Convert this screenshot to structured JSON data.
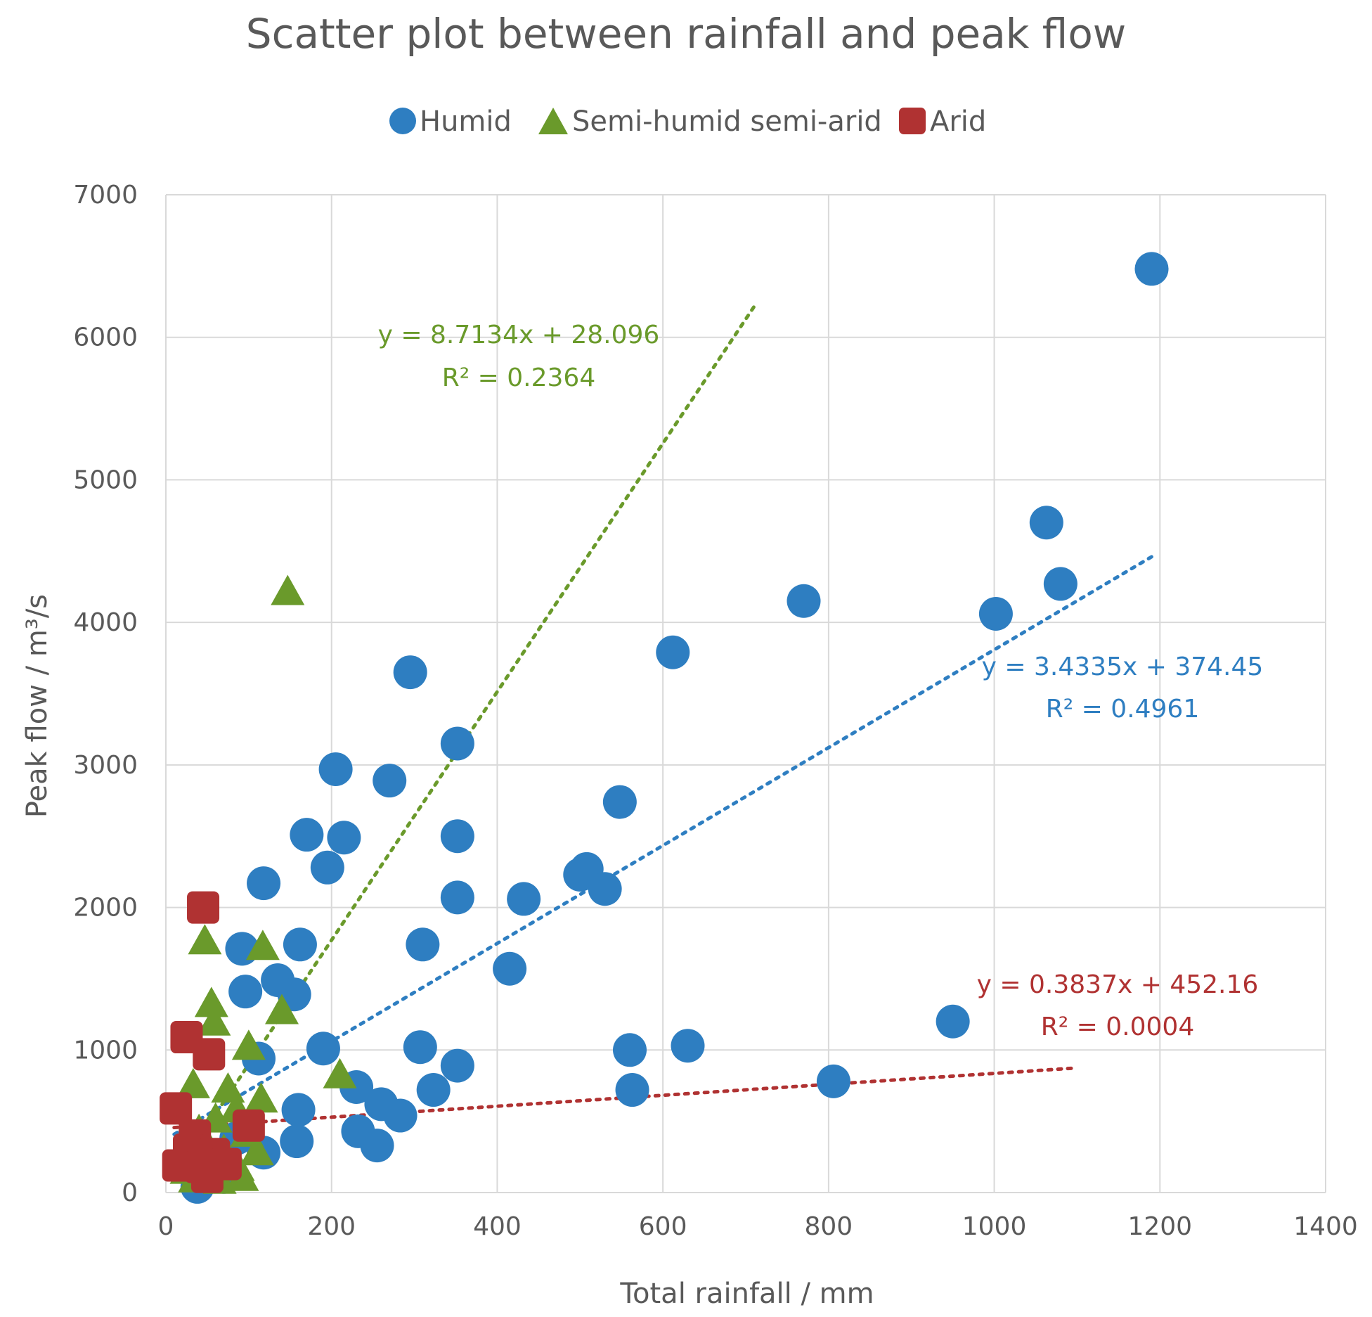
{
  "chart_data": {
    "type": "scatter",
    "title": "Scatter plot between rainfall and peak flow",
    "xlabel": "Total rainfall / mm",
    "ylabel": "Peak flow / m³/s",
    "xlim": [
      0,
      1400
    ],
    "ylim": [
      0,
      7000
    ],
    "xticks": [
      0,
      200,
      400,
      600,
      800,
      1000,
      1200,
      1400
    ],
    "yticks": [
      0,
      1000,
      2000,
      3000,
      4000,
      5000,
      6000,
      7000
    ],
    "grid": true,
    "legend_position": "top-center",
    "series": [
      {
        "name": "Humid",
        "color": "#2E7EC1",
        "marker": "circle",
        "trendline": {
          "slope": 3.4335,
          "intercept": 374.45,
          "x_range": [
            10,
            1190
          ],
          "equation": "y = 3.4335x + 374.45",
          "r2_label": "R² = 0.4961"
        },
        "points": [
          [
            1190,
            6480
          ],
          [
            1063,
            4700
          ],
          [
            1080,
            4270
          ],
          [
            1002,
            4060
          ],
          [
            770,
            4150
          ],
          [
            612,
            3790
          ],
          [
            295,
            3650
          ],
          [
            352,
            3150
          ],
          [
            205,
            2970
          ],
          [
            270,
            2890
          ],
          [
            548,
            2740
          ],
          [
            170,
            2510
          ],
          [
            215,
            2490
          ],
          [
            352,
            2500
          ],
          [
            195,
            2280
          ],
          [
            500,
            2230
          ],
          [
            508,
            2270
          ],
          [
            530,
            2130
          ],
          [
            118,
            2170
          ],
          [
            352,
            2070
          ],
          [
            432,
            2060
          ],
          [
            92,
            1710
          ],
          [
            162,
            1740
          ],
          [
            310,
            1740
          ],
          [
            415,
            1570
          ],
          [
            135,
            1490
          ],
          [
            96,
            1410
          ],
          [
            155,
            1390
          ],
          [
            190,
            1010
          ],
          [
            307,
            1020
          ],
          [
            112,
            940
          ],
          [
            230,
            740
          ],
          [
            352,
            890
          ],
          [
            560,
            1000
          ],
          [
            630,
            1030
          ],
          [
            950,
            1200
          ],
          [
            806,
            780
          ],
          [
            563,
            720
          ],
          [
            323,
            720
          ],
          [
            260,
            620
          ],
          [
            283,
            540
          ],
          [
            160,
            580
          ],
          [
            232,
            430
          ],
          [
            255,
            330
          ],
          [
            158,
            360
          ],
          [
            118,
            280
          ],
          [
            85,
            380
          ],
          [
            30,
            220
          ],
          [
            40,
            180
          ],
          [
            70,
            110
          ],
          [
            38,
            40
          ],
          [
            60,
            150
          ]
        ]
      },
      {
        "name": "Semi-humid semi-arid",
        "color": "#6A9A2B",
        "marker": "triangle",
        "trendline": {
          "slope": 8.7134,
          "intercept": 28.096,
          "x_range": [
            15,
            710
          ],
          "equation": "y = 8.7134x + 28.096",
          "r2_label": "R² = 0.2364"
        },
        "points": [
          [
            147,
            4220
          ],
          [
            47,
            1770
          ],
          [
            117,
            1730
          ],
          [
            55,
            1330
          ],
          [
            140,
            1280
          ],
          [
            58,
            1200
          ],
          [
            100,
            1030
          ],
          [
            210,
            830
          ],
          [
            33,
            760
          ],
          [
            75,
            730
          ],
          [
            115,
            660
          ],
          [
            85,
            590
          ],
          [
            60,
            520
          ],
          [
            40,
            440
          ],
          [
            98,
            420
          ],
          [
            48,
            350
          ],
          [
            70,
            300
          ],
          [
            110,
            290
          ],
          [
            55,
            230
          ],
          [
            87,
            180
          ],
          [
            25,
            160
          ],
          [
            45,
            120
          ],
          [
            92,
            110
          ],
          [
            65,
            90
          ],
          [
            35,
            100
          ]
        ]
      },
      {
        "name": "Arid",
        "color": "#B03232",
        "marker": "square",
        "trendline": {
          "slope": 0.3837,
          "intercept": 452.16,
          "x_range": [
            10,
            1100
          ],
          "equation": "y = 0.3837x + 452.16",
          "r2_label": "R² = 0.0004"
        },
        "points": [
          [
            45,
            2000
          ],
          [
            25,
            1090
          ],
          [
            52,
            970
          ],
          [
            12,
            590
          ],
          [
            100,
            470
          ],
          [
            35,
            400
          ],
          [
            28,
            300
          ],
          [
            58,
            270
          ],
          [
            72,
            200
          ],
          [
            15,
            190
          ],
          [
            42,
            180
          ],
          [
            50,
            110
          ]
        ]
      }
    ]
  }
}
